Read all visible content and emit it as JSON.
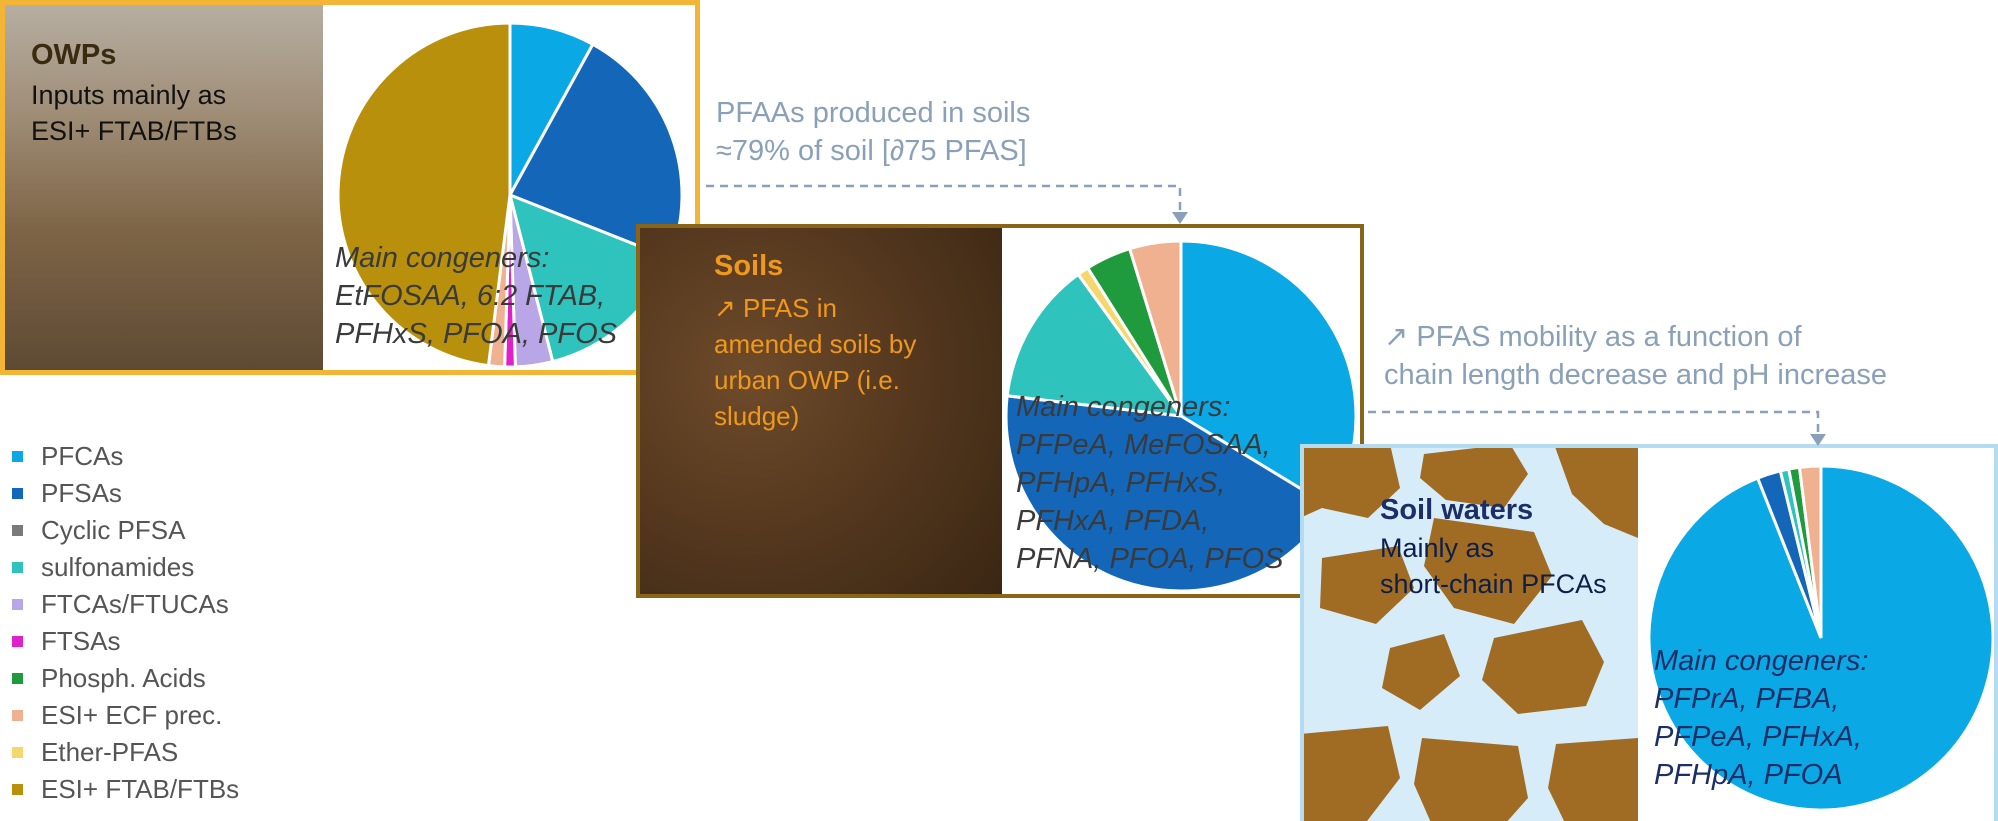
{
  "colors": {
    "PFCAs": "#0aa9e6",
    "PFSAs": "#1467b8",
    "Cyclic PFSA": "#7a7a7a",
    "sulfonamides": "#2ec4bd",
    "FTCAs/FTUCAs": "#b8a6e6",
    "FTSAs": "#e020c8",
    "Phosph. Acids": "#1f9a3c",
    "ESI+ ECF prec.": "#f0b190",
    "Ether-PFAS": "#f5d76e",
    "ESI+ FTAB/FTBs": "#b8900c",
    "owp_border": "#f2b535",
    "soil_border": "#8a6418",
    "water_border": "#b3dcf2",
    "soil_title": "#f0981c",
    "water_title": "#1c2e66",
    "annotation": "#8aa0b8"
  },
  "legend": [
    "PFCAs",
    "PFSAs",
    "Cyclic PFSA",
    "sulfonamides",
    "FTCAs/FTUCAs",
    "FTSAs",
    "Phosph. Acids",
    "ESI+ ECF prec.",
    "Ether-PFAS",
    "ESI+ FTAB/FTBs"
  ],
  "owp": {
    "title": "OWPs",
    "desc": [
      "Inputs mainly as",
      "ESI+ FTAB/FTBs"
    ],
    "congeners": [
      "Main congeners:",
      "EtFOSAA, 6:2 FTAB,",
      "PFHxS, PFOA, PFOS"
    ]
  },
  "soils": {
    "title": "Soils",
    "desc": [
      "↗ PFAS in",
      "amended soils by",
      "urban OWP (i.e.",
      "sludge)"
    ],
    "congeners": [
      "Main congeners:",
      "PFPeA, MeFOSAA,",
      "PFHpA, PFHxS,",
      "PFHxA, PFDA,",
      "PFNA, PFOA, PFOS"
    ]
  },
  "waters": {
    "title": "Soil waters",
    "desc": [
      "Mainly as",
      "short-chain PFCAs"
    ],
    "congeners": [
      "Main congeners:",
      "PFPrA, PFBA,",
      "PFPeA, PFHxA,",
      "PFHpA, PFOA"
    ]
  },
  "notes": {
    "produced": [
      "PFAAs produced in soils",
      "≈79% of soil [∂75 PFAS]"
    ],
    "mobility": [
      "↗ PFAS mobility as a function of",
      "chain length decrease and pH increase"
    ]
  },
  "chart_data": [
    {
      "type": "pie",
      "name": "OWPs",
      "labels": [
        "PFCAs",
        "PFSAs",
        "sulfonamides",
        "FTCAs/FTUCAs",
        "FTSAs",
        "ESI+ ECF prec.",
        "ESI+ FTAB/FTBs"
      ],
      "values": [
        8,
        23,
        15,
        3.5,
        1,
        1.5,
        48
      ]
    },
    {
      "type": "pie",
      "name": "Soils",
      "labels": [
        "PFCAs",
        "PFSAs",
        "sulfonamides",
        "Ether-PFAS",
        "Phosph. Acids",
        "ESI+ ECF prec."
      ],
      "values": [
        32,
        41,
        12.5,
        1,
        4,
        4.5
      ]
    },
    {
      "type": "pie",
      "name": "Soil waters",
      "labels": [
        "PFCAs",
        "PFSAs",
        "sulfonamides",
        "Phosph. Acids",
        "ESI+ ECF prec."
      ],
      "values": [
        94,
        2.2,
        0.8,
        1,
        2
      ]
    }
  ]
}
